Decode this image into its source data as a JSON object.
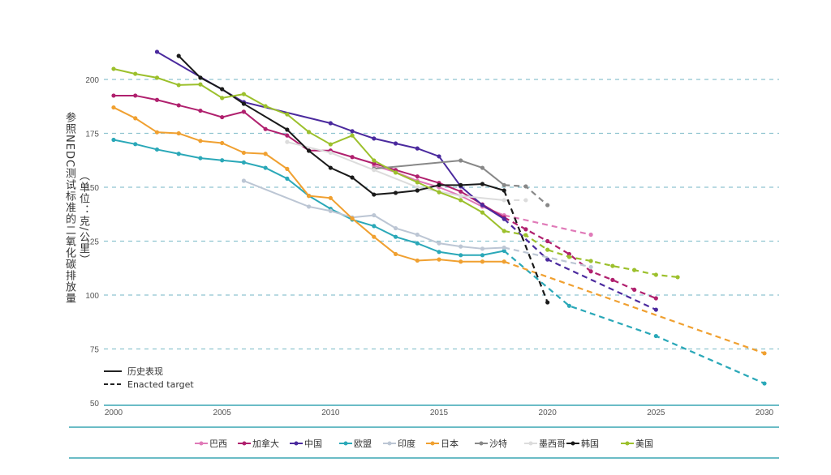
{
  "chart_data": {
    "type": "line",
    "title": "",
    "xlabel": "",
    "ylabel": "参照NEDC测试标准的二氧化碳排放量",
    "ylabel_unit": "（单位：克/公里）",
    "xlim": [
      2000,
      2030
    ],
    "ylim": [
      50,
      210
    ],
    "x_ticks": [
      2000,
      2005,
      2010,
      2015,
      2020,
      2025,
      2030
    ],
    "y_ticks": [
      50,
      75,
      100,
      125,
      150,
      175,
      200
    ],
    "grid": "horizontal-dashed",
    "style_legend": {
      "historical": "历史表现",
      "target": "Enacted target"
    },
    "legend_position": "bottom",
    "series": [
      {
        "name": "巴西",
        "color": "#e07ab8",
        "historical": [
          [
            2012,
            160
          ],
          [
            2013,
            157
          ],
          [
            2014,
            153
          ],
          [
            2015,
            150
          ],
          [
            2016,
            146
          ],
          [
            2017,
            141
          ],
          [
            2018,
            137
          ]
        ],
        "target": [
          [
            2018,
            137
          ],
          [
            2022,
            128
          ]
        ]
      },
      {
        "name": "加拿大",
        "color": "#b0206e",
        "historical": [
          [
            2000,
            192.5
          ],
          [
            2001,
            192.5
          ],
          [
            2002,
            190.5
          ],
          [
            2003,
            188
          ],
          [
            2004,
            185.5
          ],
          [
            2005,
            182.5
          ],
          [
            2006,
            185
          ],
          [
            2007,
            177
          ],
          [
            2008,
            174
          ],
          [
            2009,
            167
          ],
          [
            2010,
            167
          ],
          [
            2011,
            164
          ],
          [
            2012,
            161
          ],
          [
            2013,
            158
          ],
          [
            2014,
            155
          ],
          [
            2015,
            152
          ],
          [
            2016,
            148
          ],
          [
            2017,
            142
          ],
          [
            2018,
            136
          ]
        ],
        "target": [
          [
            2018,
            136
          ],
          [
            2019,
            130.5
          ],
          [
            2020,
            125
          ],
          [
            2021,
            119
          ],
          [
            2022,
            111
          ],
          [
            2023,
            107
          ],
          [
            2024,
            102.5
          ],
          [
            2025,
            98.5
          ]
        ]
      },
      {
        "name": "中国",
        "color": "#4b2a9e",
        "historical": [
          [
            2002,
            212.8
          ],
          [
            2006,
            189.5
          ],
          [
            2010,
            179.7
          ],
          [
            2011,
            176
          ],
          [
            2012,
            172.6
          ],
          [
            2013,
            170.3
          ],
          [
            2014,
            168
          ],
          [
            2015,
            164.3
          ],
          [
            2016,
            150.4
          ],
          [
            2017,
            141.7
          ],
          [
            2018,
            135.3
          ]
        ],
        "target": [
          [
            2018,
            135.3
          ],
          [
            2020,
            116.5
          ],
          [
            2025,
            93.2
          ]
        ]
      },
      {
        "name": "欧盟",
        "color": "#2aa8b8",
        "historical": [
          [
            2000,
            172
          ],
          [
            2001,
            170
          ],
          [
            2002,
            167.5
          ],
          [
            2003,
            165.5
          ],
          [
            2004,
            163.5
          ],
          [
            2005,
            162.5
          ],
          [
            2006,
            161.5
          ],
          [
            2007,
            159
          ],
          [
            2008,
            154
          ],
          [
            2009,
            146
          ],
          [
            2010,
            140
          ],
          [
            2011,
            135
          ],
          [
            2012,
            132
          ],
          [
            2013,
            127
          ],
          [
            2014,
            124
          ],
          [
            2015,
            120
          ],
          [
            2016,
            118.5
          ],
          [
            2017,
            118.5
          ],
          [
            2018,
            120.5
          ]
        ],
        "target": [
          [
            2018,
            120.5
          ],
          [
            2021,
            95
          ],
          [
            2025,
            81
          ],
          [
            2030,
            59
          ]
        ]
      },
      {
        "name": "印度",
        "color": "#bcc6d4",
        "historical": [
          [
            2006,
            153
          ],
          [
            2009,
            141
          ],
          [
            2010,
            139
          ],
          [
            2011,
            136
          ],
          [
            2012,
            137
          ],
          [
            2013,
            131
          ],
          [
            2014,
            128
          ],
          [
            2015,
            124
          ],
          [
            2016,
            122.5
          ],
          [
            2017,
            121.5
          ],
          [
            2018,
            122
          ]
        ],
        "target": [
          [
            2018,
            122
          ],
          [
            2022,
            113
          ]
        ]
      },
      {
        "name": "日本",
        "color": "#f0a030",
        "historical": [
          [
            2000,
            187
          ],
          [
            2001,
            182
          ],
          [
            2002,
            175.5
          ],
          [
            2003,
            175
          ],
          [
            2004,
            171.5
          ],
          [
            2005,
            170.5
          ],
          [
            2006,
            166
          ],
          [
            2007,
            165.5
          ],
          [
            2008,
            158.5
          ],
          [
            2009,
            146
          ],
          [
            2010,
            145
          ],
          [
            2011,
            135.5
          ],
          [
            2012,
            127
          ],
          [
            2013,
            119
          ],
          [
            2014,
            116
          ],
          [
            2015,
            116.5
          ],
          [
            2016,
            115.5
          ],
          [
            2017,
            115.5
          ],
          [
            2018,
            115.5
          ]
        ],
        "target": [
          [
            2018,
            115.5
          ],
          [
            2030,
            73
          ]
        ]
      },
      {
        "name": "沙特",
        "color": "#888888",
        "historical": [
          [
            2012,
            158.6
          ],
          [
            2016,
            162.4
          ],
          [
            2017,
            159
          ],
          [
            2018,
            151
          ]
        ],
        "target": [
          [
            2018,
            151
          ],
          [
            2019,
            150.4
          ],
          [
            2020,
            141.7
          ]
        ]
      },
      {
        "name": "墨西哥",
        "color": "#dcdcdc",
        "historical": [
          [
            2008,
            171
          ],
          [
            2010,
            166
          ],
          [
            2012,
            158
          ],
          [
            2014,
            150
          ],
          [
            2016,
            146
          ],
          [
            2018,
            144
          ]
        ],
        "target": [
          [
            2018,
            144
          ],
          [
            2019,
            144
          ]
        ]
      },
      {
        "name": "韩国",
        "color": "#1a1a1a",
        "historical": [
          [
            2003,
            210.9
          ],
          [
            2004,
            200.8
          ],
          [
            2005,
            195.5
          ],
          [
            2006,
            188.7
          ],
          [
            2008,
            176.7
          ],
          [
            2009,
            166.9
          ],
          [
            2010,
            159
          ],
          [
            2011,
            154.5
          ],
          [
            2012,
            146.6
          ],
          [
            2013,
            147.4
          ],
          [
            2014,
            148.5
          ],
          [
            2015,
            151
          ],
          [
            2016,
            151
          ],
          [
            2017,
            151.5
          ],
          [
            2018,
            148.5
          ]
        ],
        "target": [
          [
            2018,
            148.5
          ],
          [
            2020,
            96.6
          ]
        ]
      },
      {
        "name": "美国",
        "color": "#9cc02c",
        "historical": [
          [
            2000,
            204.9
          ],
          [
            2001,
            202.6
          ],
          [
            2002,
            200.8
          ],
          [
            2003,
            197.4
          ],
          [
            2004,
            197.7
          ],
          [
            2005,
            191.4
          ],
          [
            2006,
            193.2
          ],
          [
            2007,
            187.6
          ],
          [
            2008,
            183.8
          ],
          [
            2009,
            175.6
          ],
          [
            2010,
            169.9
          ],
          [
            2011,
            174
          ],
          [
            2012,
            162.4
          ],
          [
            2013,
            156.8
          ],
          [
            2014,
            152.3
          ],
          [
            2015,
            147.7
          ],
          [
            2016,
            144
          ],
          [
            2017,
            138.3
          ],
          [
            2018,
            129.7
          ]
        ],
        "target": [
          [
            2018,
            129.7
          ],
          [
            2019,
            127.8
          ],
          [
            2020,
            121
          ],
          [
            2021,
            117.7
          ],
          [
            2022,
            115.8
          ],
          [
            2023,
            113.5
          ],
          [
            2024,
            111.6
          ],
          [
            2025,
            109.4
          ],
          [
            2026,
            108.3
          ]
        ]
      }
    ]
  }
}
